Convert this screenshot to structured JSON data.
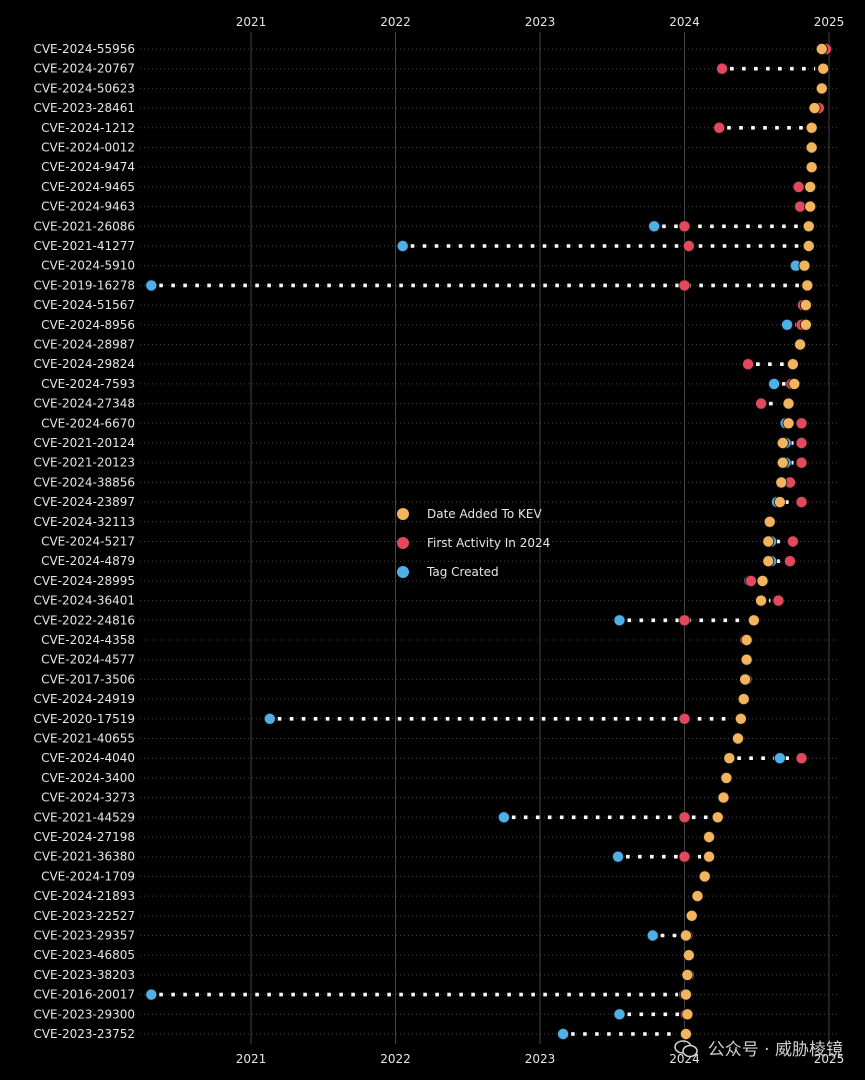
{
  "chart_data": {
    "type": "scatter",
    "title": "",
    "xlabel": "",
    "ylabel": "",
    "x_ticks": [
      "2021",
      "2022",
      "2023",
      "2024",
      "2025"
    ],
    "xlim": [
      2020.25,
      2025.05
    ],
    "legend": {
      "placement": "center",
      "entries": [
        {
          "key": "kev",
          "label": "Date Added To KEV",
          "color": "#F2B45C"
        },
        {
          "key": "first",
          "label": "First Activity In 2024",
          "color": "#E3495C"
        },
        {
          "key": "tag",
          "label": "Tag Created",
          "color": "#4FB0E8"
        }
      ]
    },
    "series": [
      {
        "name": "CVE-2024-55956",
        "kev": 2024.95,
        "first": 2024.98,
        "tag": null
      },
      {
        "name": "CVE-2024-20767",
        "kev": 2024.96,
        "first": 2024.26,
        "tag": null
      },
      {
        "name": "CVE-2024-50623",
        "kev": 2024.95,
        "first": 2024.95,
        "tag": null
      },
      {
        "name": "CVE-2023-28461",
        "kev": 2024.9,
        "first": 2024.93,
        "tag": null
      },
      {
        "name": "CVE-2024-1212",
        "kev": 2024.88,
        "first": 2024.24,
        "tag": 2024.24
      },
      {
        "name": "CVE-2024-0012",
        "kev": 2024.88,
        "first": 2024.88,
        "tag": null
      },
      {
        "name": "CVE-2024-9474",
        "kev": 2024.88,
        "first": 2024.88,
        "tag": null
      },
      {
        "name": "CVE-2024-9465",
        "kev": 2024.87,
        "first": 2024.79,
        "tag": null
      },
      {
        "name": "CVE-2024-9463",
        "kev": 2024.87,
        "first": 2024.8,
        "tag": null
      },
      {
        "name": "CVE-2021-26086",
        "kev": 2024.86,
        "first": 2024.0,
        "tag": 2023.79
      },
      {
        "name": "CVE-2021-41277",
        "kev": 2024.86,
        "first": 2024.03,
        "tag": 2022.05
      },
      {
        "name": "CVE-2024-5910",
        "kev": 2024.83,
        "first": 2024.83,
        "tag": 2024.77
      },
      {
        "name": "CVE-2019-16278",
        "kev": 2024.85,
        "first": 2024.0,
        "tag": 2020.31
      },
      {
        "name": "CVE-2024-51567",
        "kev": 2024.84,
        "first": 2024.82,
        "tag": null
      },
      {
        "name": "CVE-2024-8956",
        "kev": 2024.84,
        "first": 2024.81,
        "tag": 2024.71
      },
      {
        "name": "CVE-2024-28987",
        "kev": 2024.8,
        "first": 2024.8,
        "tag": null
      },
      {
        "name": "CVE-2024-29824",
        "kev": 2024.75,
        "first": 2024.44,
        "tag": null
      },
      {
        "name": "CVE-2024-7593",
        "kev": 2024.76,
        "first": 2024.74,
        "tag": 2024.62
      },
      {
        "name": "CVE-2024-27348",
        "kev": 2024.72,
        "first": 2024.53,
        "tag": null
      },
      {
        "name": "CVE-2024-6670",
        "kev": 2024.72,
        "first": 2024.81,
        "tag": 2024.7
      },
      {
        "name": "CVE-2021-20124",
        "kev": 2024.68,
        "first": 2024.81,
        "tag": 2024.7
      },
      {
        "name": "CVE-2021-20123",
        "kev": 2024.68,
        "first": 2024.81,
        "tag": 2024.7
      },
      {
        "name": "CVE-2024-38856",
        "kev": 2024.67,
        "first": 2024.73,
        "tag": null
      },
      {
        "name": "CVE-2024-23897",
        "kev": 2024.66,
        "first": 2024.81,
        "tag": 2024.64
      },
      {
        "name": "CVE-2024-32113",
        "kev": 2024.59,
        "first": 2024.59,
        "tag": 2024.59
      },
      {
        "name": "CVE-2024-5217",
        "kev": 2024.58,
        "first": 2024.75,
        "tag": 2024.6
      },
      {
        "name": "CVE-2024-4879",
        "kev": 2024.58,
        "first": 2024.73,
        "tag": 2024.6
      },
      {
        "name": "CVE-2024-28995",
        "kev": 2024.54,
        "first": 2024.46,
        "tag": 2024.45
      },
      {
        "name": "CVE-2024-36401",
        "kev": 2024.53,
        "first": 2024.65,
        "tag": null
      },
      {
        "name": "CVE-2022-24816",
        "kev": 2024.48,
        "first": 2024.0,
        "tag": 2023.55
      },
      {
        "name": "CVE-2024-4358",
        "kev": 2024.43,
        "first": 2024.42,
        "tag": null
      },
      {
        "name": "CVE-2024-4577",
        "kev": 2024.43,
        "first": 2024.43,
        "tag": null
      },
      {
        "name": "CVE-2017-3506",
        "kev": 2024.42,
        "first": 2024.43,
        "tag": null
      },
      {
        "name": "CVE-2024-24919",
        "kev": 2024.41,
        "first": 2024.41,
        "tag": null
      },
      {
        "name": "CVE-2020-17519",
        "kev": 2024.39,
        "first": 2024.0,
        "tag": 2021.13
      },
      {
        "name": "CVE-2021-40655",
        "kev": 2024.37,
        "first": 2024.37,
        "tag": null
      },
      {
        "name": "CVE-2024-4040",
        "kev": 2024.31,
        "first": 2024.81,
        "tag": 2024.66
      },
      {
        "name": "CVE-2024-3400",
        "kev": 2024.29,
        "first": 2024.29,
        "tag": null
      },
      {
        "name": "CVE-2024-3273",
        "kev": 2024.27,
        "first": 2024.27,
        "tag": null
      },
      {
        "name": "CVE-2021-44529",
        "kev": 2024.23,
        "first": 2024.0,
        "tag": 2022.75
      },
      {
        "name": "CVE-2024-27198",
        "kev": 2024.17,
        "first": 2024.17,
        "tag": null
      },
      {
        "name": "CVE-2021-36380",
        "kev": 2024.17,
        "first": 2024.0,
        "tag": 2023.54
      },
      {
        "name": "CVE-2024-1709",
        "kev": 2024.14,
        "first": 2024.14,
        "tag": null
      },
      {
        "name": "CVE-2024-21893",
        "kev": 2024.09,
        "first": 2024.09,
        "tag": null
      },
      {
        "name": "CVE-2023-22527",
        "kev": 2024.05,
        "first": 2024.05,
        "tag": null
      },
      {
        "name": "CVE-2023-29357",
        "kev": 2024.01,
        "first": 2024.02,
        "tag": 2023.78
      },
      {
        "name": "CVE-2023-46805",
        "kev": 2024.03,
        "first": 2024.03,
        "tag": null
      },
      {
        "name": "CVE-2023-38203",
        "kev": 2024.02,
        "first": 2024.03,
        "tag": null
      },
      {
        "name": "CVE-2016-20017",
        "kev": 2024.01,
        "first": 2024.0,
        "tag": 2020.31
      },
      {
        "name": "CVE-2023-29300",
        "kev": 2024.02,
        "first": 2024.01,
        "tag": 2023.55
      },
      {
        "name": "CVE-2023-23752",
        "kev": 2024.01,
        "first": 2024.01,
        "tag": 2023.16
      }
    ]
  },
  "watermark": {
    "text": "公众号 · 威胁棱镜",
    "icon": "wechat-icon"
  }
}
